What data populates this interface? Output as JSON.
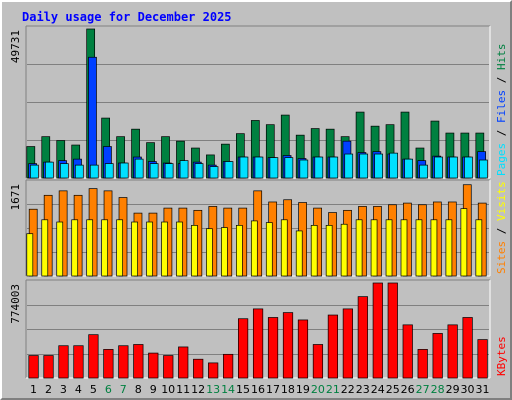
{
  "title": "Daily usage for December 2025",
  "colors": {
    "hits": "#008040",
    "files": "#0040ff",
    "pages": "#00e0ff",
    "visits": "#ffff00",
    "sites": "#ff8000",
    "kbytes": "#ff0000",
    "weekend": "#008040",
    "weekday": "#000000",
    "panel": "#c0c0c0",
    "gridline": "#808080"
  },
  "chart_data": [
    {
      "type": "bar",
      "panel": "hits-files-pages",
      "categories": [
        "1",
        "2",
        "3",
        "4",
        "5",
        "6",
        "7",
        "8",
        "9",
        "10",
        "11",
        "12",
        "13",
        "14",
        "15",
        "16",
        "17",
        "18",
        "19",
        "20",
        "21",
        "22",
        "23",
        "24",
        "25",
        "26",
        "27",
        "28",
        "29",
        "30",
        "31"
      ],
      "weekend_days": [
        "6",
        "7",
        "13",
        "14",
        "20",
        "21",
        "27",
        "28"
      ],
      "ymax_label": "49731",
      "ylim": [
        0,
        49731
      ],
      "series": [
        {
          "name": "Hits",
          "values": [
            10500,
            13800,
            12500,
            11000,
            49731,
            20000,
            13800,
            16300,
            11800,
            13800,
            12300,
            10000,
            7700,
            11300,
            14800,
            19200,
            17800,
            21000,
            14300,
            16500,
            16300,
            13800,
            22000,
            17300,
            17800,
            22000,
            10000,
            19000,
            15000,
            15000,
            15000
          ]
        },
        {
          "name": "Files",
          "values": [
            4800,
            5300,
            5800,
            6300,
            40300,
            10500,
            5000,
            7000,
            5500,
            5000,
            4800,
            5300,
            4300,
            5500,
            7000,
            7000,
            6800,
            7500,
            6500,
            7000,
            7000,
            12300,
            8500,
            8800,
            8000,
            6300,
            5800,
            7300,
            7000,
            7000,
            8800
          ]
        },
        {
          "name": "Pages",
          "values": [
            4300,
            5300,
            4800,
            4300,
            4300,
            4800,
            5000,
            6300,
            4800,
            4800,
            5800,
            4800,
            3800,
            5500,
            7000,
            7000,
            6800,
            6800,
            6000,
            7000,
            7000,
            8000,
            8000,
            8000,
            8300,
            6300,
            4300,
            7000,
            7000,
            7000,
            6000
          ]
        }
      ]
    },
    {
      "type": "bar",
      "panel": "visits-sites",
      "categories": [
        "1",
        "2",
        "3",
        "4",
        "5",
        "6",
        "7",
        "8",
        "9",
        "10",
        "11",
        "12",
        "13",
        "14",
        "15",
        "16",
        "17",
        "18",
        "19",
        "20",
        "21",
        "22",
        "23",
        "24",
        "25",
        "26",
        "27",
        "28",
        "29",
        "30",
        "31"
      ],
      "ymax_label": "1671",
      "ylim": [
        0,
        1671
      ],
      "series": [
        {
          "name": "Visits",
          "values": [
            760,
            1010,
            970,
            1010,
            1010,
            1010,
            1010,
            970,
            970,
            970,
            970,
            910,
            850,
            870,
            910,
            990,
            960,
            1010,
            810,
            910,
            910,
            930,
            1010,
            1010,
            1010,
            1010,
            1010,
            1010,
            1010,
            1210,
            1010
          ]
        },
        {
          "name": "Sites",
          "values": [
            1200,
            1450,
            1530,
            1450,
            1570,
            1530,
            1410,
            1130,
            1130,
            1220,
            1220,
            1180,
            1250,
            1220,
            1220,
            1530,
            1330,
            1370,
            1320,
            1220,
            1140,
            1180,
            1250,
            1250,
            1280,
            1310,
            1280,
            1330,
            1330,
            1640,
            1310
          ]
        }
      ]
    },
    {
      "type": "bar",
      "panel": "kbytes",
      "categories": [
        "1",
        "2",
        "3",
        "4",
        "5",
        "6",
        "7",
        "8",
        "9",
        "10",
        "11",
        "12",
        "13",
        "14",
        "15",
        "16",
        "17",
        "18",
        "19",
        "20",
        "21",
        "22",
        "23",
        "24",
        "25",
        "26",
        "27",
        "28",
        "29",
        "30",
        "31"
      ],
      "ymax_label": "774003",
      "ylim": [
        0,
        774003
      ],
      "series": [
        {
          "name": "KBytes",
          "values": [
            183000,
            183000,
            263000,
            263000,
            353000,
            233000,
            263000,
            273000,
            203000,
            183000,
            253000,
            153000,
            123000,
            193000,
            483000,
            563000,
            493000,
            533000,
            473000,
            273000,
            513000,
            563000,
            663000,
            774000,
            774000,
            433000,
            233000,
            363000,
            433000,
            493000,
            313000
          ]
        }
      ]
    }
  ]
}
